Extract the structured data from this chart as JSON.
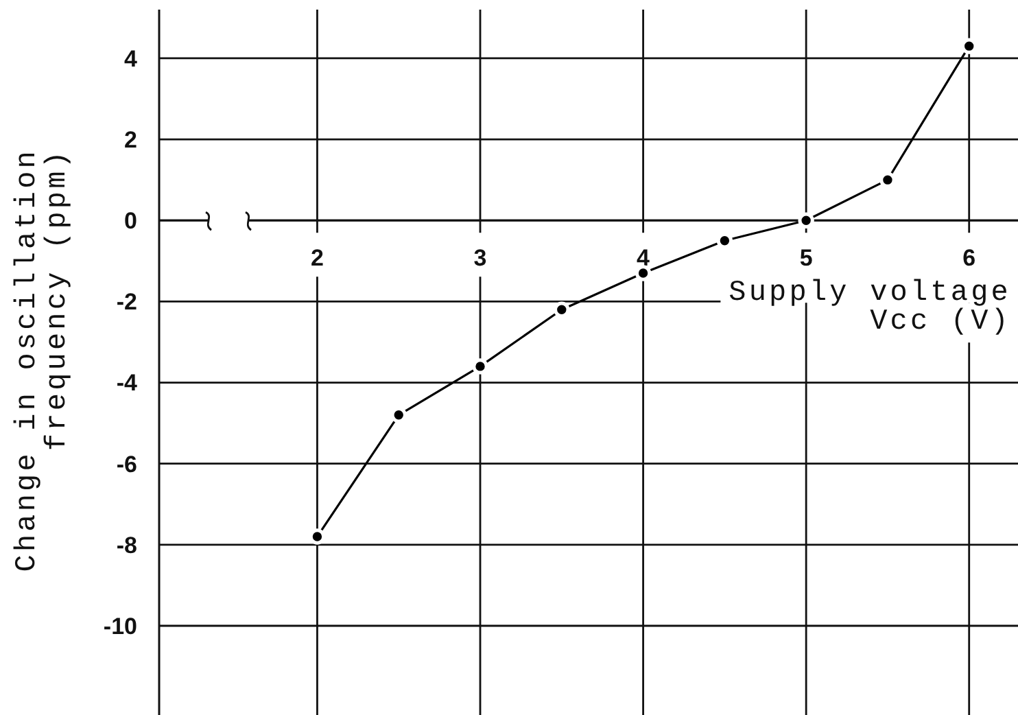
{
  "chart_data": {
    "type": "line",
    "xlabel": "Supply voltage\nVcc (V)",
    "ylabel": "Change in oscillation\nfrequency (ppm)",
    "x": [
      2,
      2.5,
      3,
      3.5,
      4,
      4.5,
      5,
      5.5,
      6
    ],
    "values": [
      -7.8,
      -4.8,
      -3.6,
      -2.2,
      -1.3,
      -0.5,
      0,
      1.0,
      4.3
    ],
    "color": "#000000",
    "marker": "circle",
    "line_style": "solid",
    "xlim": [
      1.03,
      6.3
    ],
    "ylim": [
      -12.2,
      5.2
    ],
    "xticks": [
      2,
      3,
      4,
      5,
      6
    ],
    "yticks": [
      4,
      2,
      0,
      -2,
      -4,
      -6,
      -8,
      -10
    ],
    "grid": true
  }
}
